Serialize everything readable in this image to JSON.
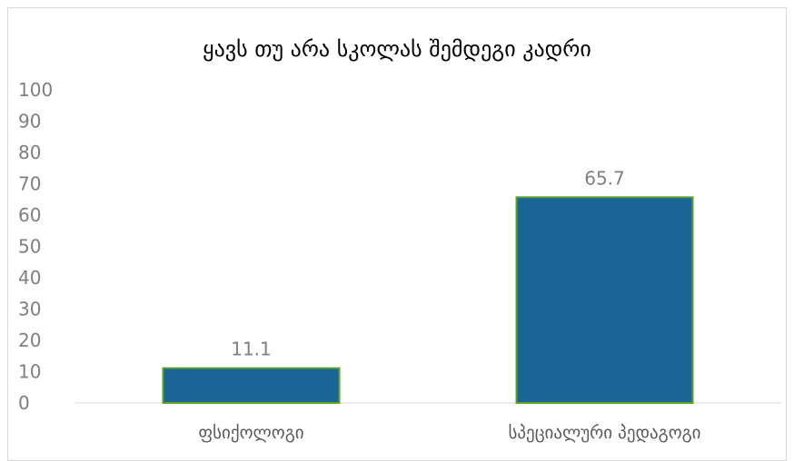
{
  "chart_data": {
    "type": "bar",
    "title": "ყავს თუ არა სკოლას შემდეგი კადრი",
    "categories": [
      "ფსიქოლოგი",
      "სპეციალური პედაგოგი"
    ],
    "values": [
      11.1,
      65.7
    ],
    "data_labels": [
      "11.1",
      "65.7"
    ],
    "yticks": [
      "0",
      "10",
      "20",
      "30",
      "40",
      "50",
      "60",
      "70",
      "80",
      "90",
      "100"
    ],
    "ylim": [
      0,
      100
    ],
    "xlabel": "",
    "ylabel": "",
    "grid": false,
    "bar_color": "#1a6496",
    "bar_border_color": "#5aa02c"
  }
}
